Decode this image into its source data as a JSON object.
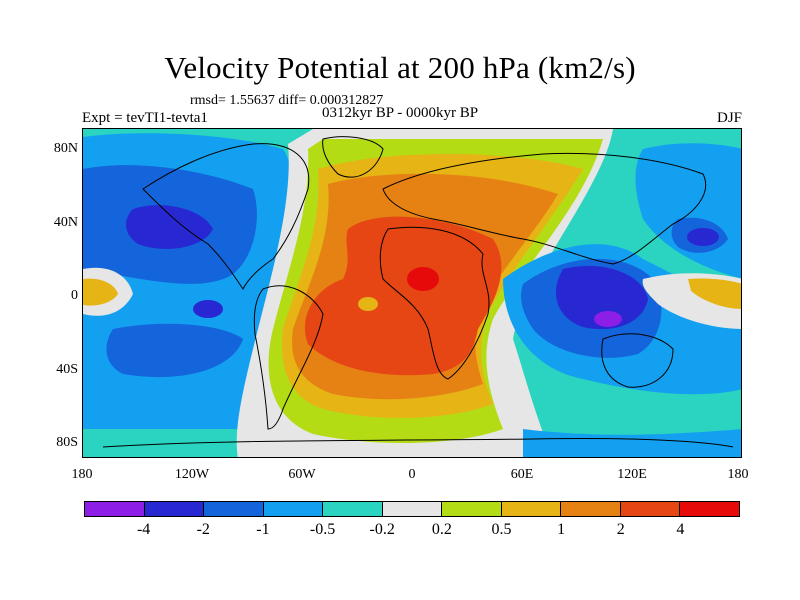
{
  "header": {
    "title": "Velocity Potential at 200 hPa (km2/s)",
    "stats": "rmsd= 1.55637 diff= 0.000312827",
    "experiment": "Expt = tevTI1-tevta1",
    "period": "0312kyr BP - 0000kyr BP",
    "season": "DJF"
  },
  "axes": {
    "lat_labels": [
      "80N",
      "40N",
      "0",
      "40S",
      "80S"
    ],
    "lon_labels": [
      "180",
      "120W",
      "60W",
      "0",
      "60E",
      "120E",
      "180"
    ]
  },
  "colorbar": {
    "colors": [
      "#8c1ee6",
      "#2828d2",
      "#1464dc",
      "#14a0f0",
      "#2ad4c0",
      "#e6e6e6",
      "#b4dc14",
      "#e6b414",
      "#e68214",
      "#e64614",
      "#e60a0a"
    ],
    "labels": [
      "-4",
      "-2",
      "-1",
      "-0.5",
      "-0.2",
      "0.2",
      "0.5",
      "1",
      "2",
      "4"
    ]
  }
}
